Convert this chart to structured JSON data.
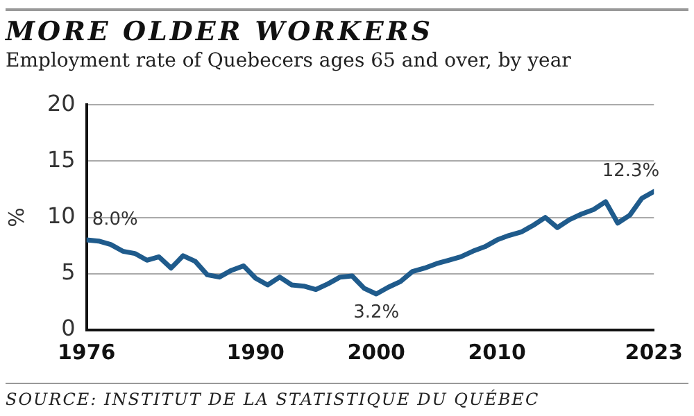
{
  "chart_data": {
    "type": "line",
    "title": "MORE OLDER WORKERS",
    "subtitle": "Employment rate of Quebecers ages 65 and over, by year",
    "ylabel": "%",
    "x": [
      1976,
      1977,
      1978,
      1979,
      1980,
      1981,
      1982,
      1983,
      1984,
      1985,
      1986,
      1987,
      1988,
      1989,
      1990,
      1991,
      1992,
      1993,
      1994,
      1995,
      1996,
      1997,
      1998,
      1999,
      2000,
      2001,
      2002,
      2003,
      2004,
      2005,
      2006,
      2007,
      2008,
      2009,
      2010,
      2011,
      2012,
      2013,
      2014,
      2015,
      2016,
      2017,
      2018,
      2019,
      2020,
      2021,
      2022,
      2023
    ],
    "series": [
      {
        "color": "#1f5b8c",
        "values": [
          8.0,
          7.9,
          7.6,
          7.0,
          6.8,
          6.2,
          6.5,
          5.5,
          6.6,
          6.1,
          4.9,
          4.7,
          5.3,
          5.7,
          4.6,
          4.0,
          4.7,
          4.0,
          3.9,
          3.6,
          4.1,
          4.7,
          4.8,
          3.7,
          3.2,
          3.8,
          4.3,
          5.2,
          5.5,
          5.9,
          6.2,
          6.5,
          7.0,
          7.4,
          8.0,
          8.4,
          8.7,
          9.3,
          10.0,
          9.1,
          9.8,
          10.3,
          10.7,
          11.4,
          9.5,
          10.2,
          11.7,
          12.3
        ]
      }
    ],
    "xlim": [
      1976,
      2023
    ],
    "xticks": [
      1976,
      1990,
      2000,
      2010,
      2023
    ],
    "ylim": [
      0,
      20
    ],
    "yticks": [
      0,
      5,
      10,
      15,
      20
    ],
    "grid": "y",
    "legend": false,
    "marker": "none",
    "line_style": "solid",
    "annotations": [
      {
        "text": "8.0%",
        "x": 1976,
        "y": 8.0
      },
      {
        "text": "3.2%",
        "x": 2000,
        "y": 3.2
      },
      {
        "text": "12.3%",
        "x": 2023,
        "y": 12.3
      },
      "SOURCE: INSTITUT DE LA STATISTIQUE DU QUÉBEC"
    ]
  }
}
